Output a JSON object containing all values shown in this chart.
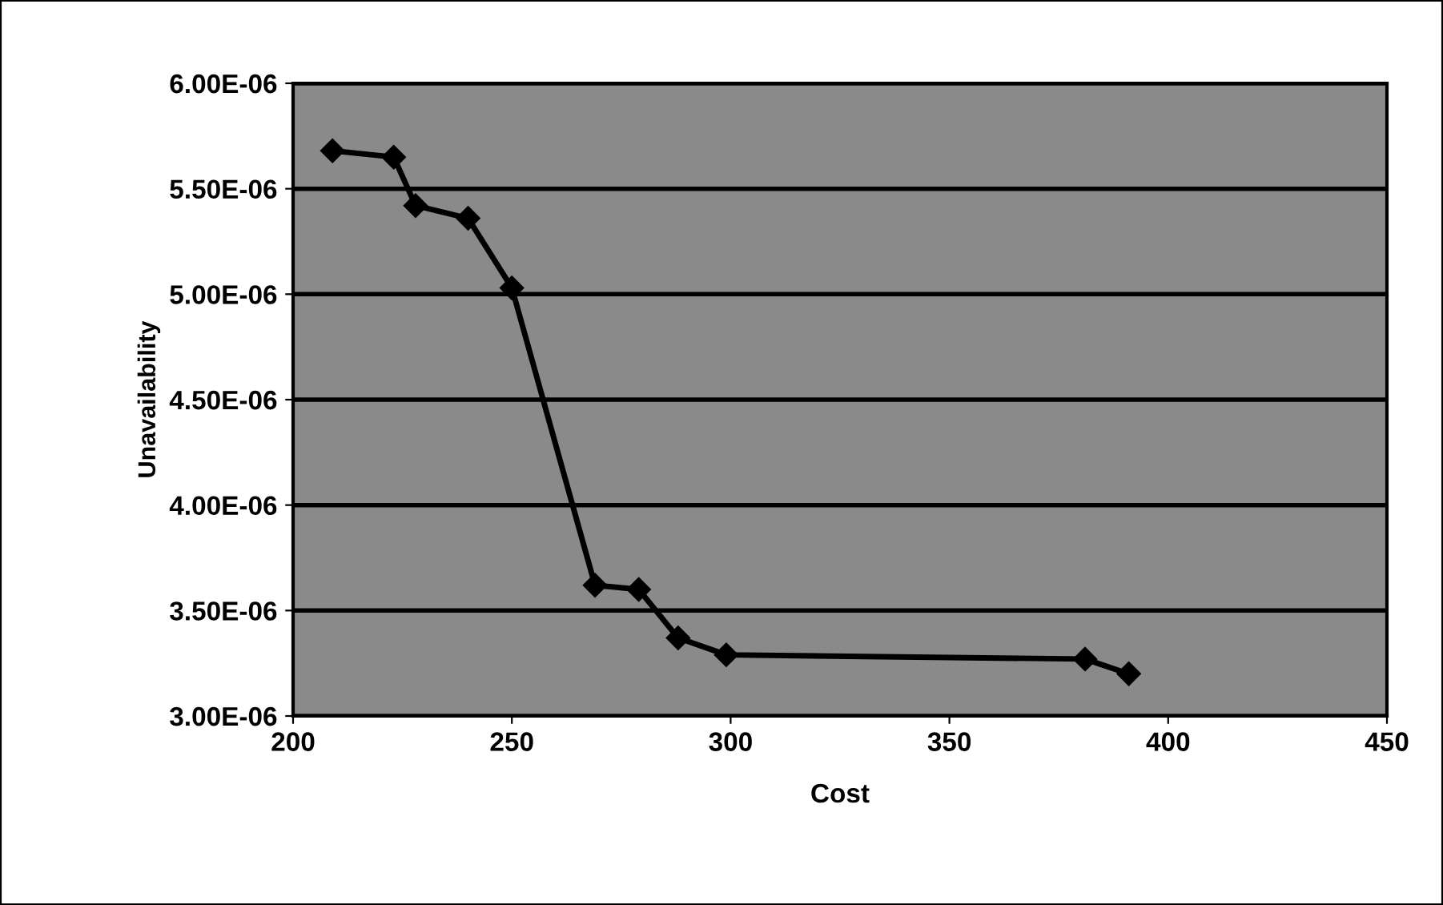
{
  "chart_data": {
    "type": "line",
    "xlabel": "Cost",
    "ylabel": "Unavailability",
    "x": [
      209,
      223,
      228,
      240,
      250,
      269,
      279,
      288,
      299,
      381,
      391
    ],
    "series": [
      {
        "color": "#000000",
        "values": [
          5.68e-06,
          5.65e-06,
          5.42e-06,
          5.36e-06,
          5.03e-06,
          3.62e-06,
          3.6e-06,
          3.37e-06,
          3.29e-06,
          3.27e-06,
          3.2e-06
        ]
      }
    ],
    "xlim": [
      200,
      450
    ],
    "xticks": [
      200,
      250,
      300,
      350,
      400,
      450
    ],
    "ylim": [
      3e-06,
      6e-06
    ],
    "yticks": [
      {
        "value": 3e-06,
        "label": "3.00E-06"
      },
      {
        "value": 3.5e-06,
        "label": "3.50E-06"
      },
      {
        "value": 4e-06,
        "label": "4.00E-06"
      },
      {
        "value": 4.5e-06,
        "label": "4.50E-06"
      },
      {
        "value": 5e-06,
        "label": "5.00E-06"
      },
      {
        "value": 5.5e-06,
        "label": "5.50E-06"
      },
      {
        "value": 6e-06,
        "label": "6.00E-06"
      }
    ],
    "grid": "y",
    "marker": "diamond",
    "line_style": "solid"
  }
}
